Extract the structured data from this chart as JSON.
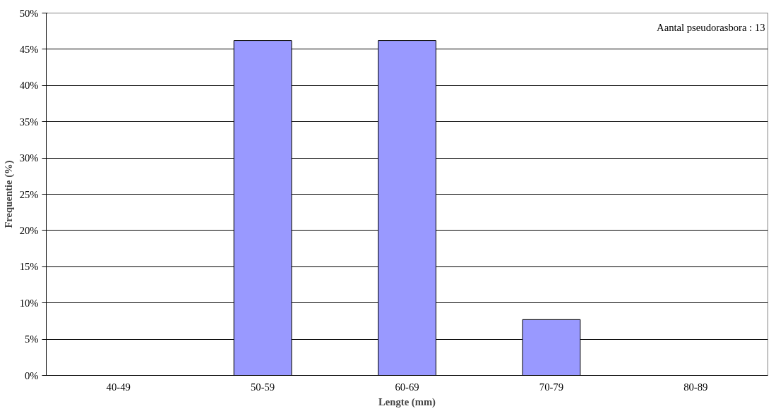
{
  "chart_data": {
    "type": "bar",
    "xlabel": "Lengte (mm)",
    "ylabel": "Frequentie (%)",
    "categories": [
      "40-49",
      "50-59",
      "60-69",
      "70-79",
      "80-89"
    ],
    "values": [
      0,
      46.2,
      46.2,
      7.7,
      0
    ],
    "color": "#9999ff",
    "ylim": [
      0,
      50
    ],
    "yticks": [
      {
        "value": 0,
        "label": "0%"
      },
      {
        "value": 5,
        "label": "5%"
      },
      {
        "value": 10,
        "label": "10%"
      },
      {
        "value": 15,
        "label": "15%"
      },
      {
        "value": 20,
        "label": "20%"
      },
      {
        "value": 25,
        "label": "25%"
      },
      {
        "value": 30,
        "label": "30%"
      },
      {
        "value": 35,
        "label": "35%"
      },
      {
        "value": 40,
        "label": "40%"
      },
      {
        "value": 45,
        "label": "45%"
      },
      {
        "value": 50,
        "label": "50%"
      }
    ],
    "grid": "y",
    "annotations": [
      "Aantal pseudorasbora : 13"
    ]
  }
}
